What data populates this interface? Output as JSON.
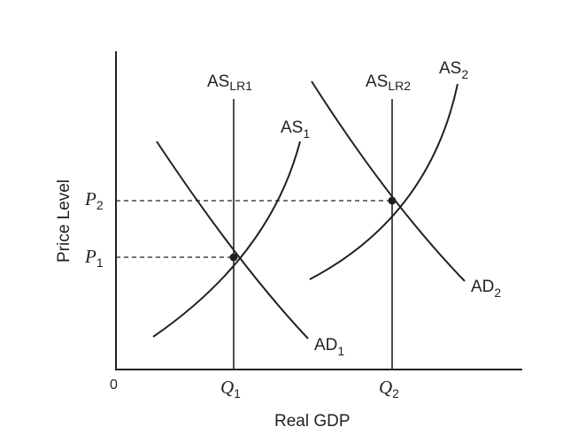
{
  "diagram": {
    "x_axis_title": "Real GDP",
    "y_axis_title": "Price Level",
    "origin_label": "0",
    "curves": {
      "as1": {
        "base": "AS",
        "sub": "1"
      },
      "as2": {
        "base": "AS",
        "sub": "2"
      },
      "ad1": {
        "base": "AD",
        "sub": "1"
      },
      "ad2": {
        "base": "AD",
        "sub": "2"
      },
      "aslr1": {
        "base": "AS",
        "sub": "LR1"
      },
      "aslr2": {
        "base": "AS",
        "sub": "LR2"
      }
    },
    "x_ticks": {
      "q1": {
        "base": "Q",
        "sub": "1"
      },
      "q2": {
        "base": "Q",
        "sub": "2"
      }
    },
    "y_ticks": {
      "p1": {
        "base": "P",
        "sub": "1"
      },
      "p2": {
        "base": "P",
        "sub": "2"
      }
    },
    "line_color": "#231f20"
  }
}
